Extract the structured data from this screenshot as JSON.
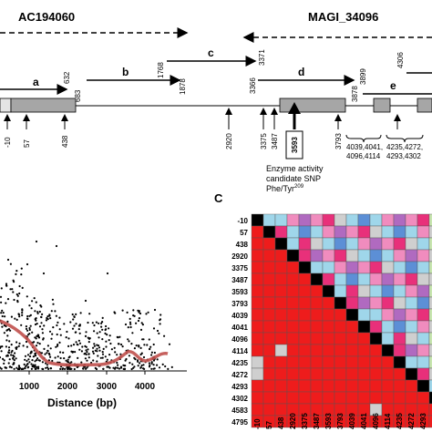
{
  "top": {
    "clone_left": "AC194060",
    "clone_right": "MAGI_34096",
    "segments": [
      {
        "label": "a",
        "start": "",
        "end": "632"
      },
      {
        "label": "b",
        "start": "683",
        "end": "1878"
      },
      {
        "label": "c",
        "start": "1768",
        "end": "3371"
      },
      {
        "label": "d",
        "start": "3366",
        "end": "3878"
      },
      {
        "label": "e",
        "start": "3899",
        "end": ""
      },
      {
        "label": "",
        "start": "4306",
        "end": ""
      }
    ],
    "snp_positions": [
      "-10",
      "57",
      "438",
      "2920",
      "3375",
      "3487",
      "3793"
    ],
    "key_snp": "3593",
    "cluster1_lines": [
      "4039,4041,",
      "4096,4114"
    ],
    "cluster2_lines": [
      "4235,4272,",
      "4293,4302"
    ],
    "annotation_lines": [
      "Enzyme activity",
      "candidate SNP",
      "Phe/Tyr"
    ],
    "annotation_sup": "209"
  },
  "scatter_panel": {
    "xlabel": "Distance (bp)",
    "xticks": [
      "1000",
      "2000",
      "3000",
      "4000"
    ],
    "colors": {
      "points": "#000000",
      "fit": "#c0504d"
    }
  },
  "ld_panel": {
    "panel_label": "C",
    "markers": [
      "-10",
      "57",
      "438",
      "2920",
      "3375",
      "3487",
      "3593",
      "3793",
      "4039",
      "4041",
      "4096",
      "4114",
      "4235",
      "4272",
      "4293",
      "4302",
      "4583",
      "4795"
    ],
    "colors": {
      "red": "#ee1c1c",
      "diag": "#000000",
      "grey": "#cfcfcf",
      "light_blue": "#9fd6ea",
      "blue": "#5c8fd6",
      "magenta": "#e8307a",
      "pink": "#f08cbe",
      "violet": "#b06ac0",
      "light_green": "#c8e6b0"
    }
  }
}
